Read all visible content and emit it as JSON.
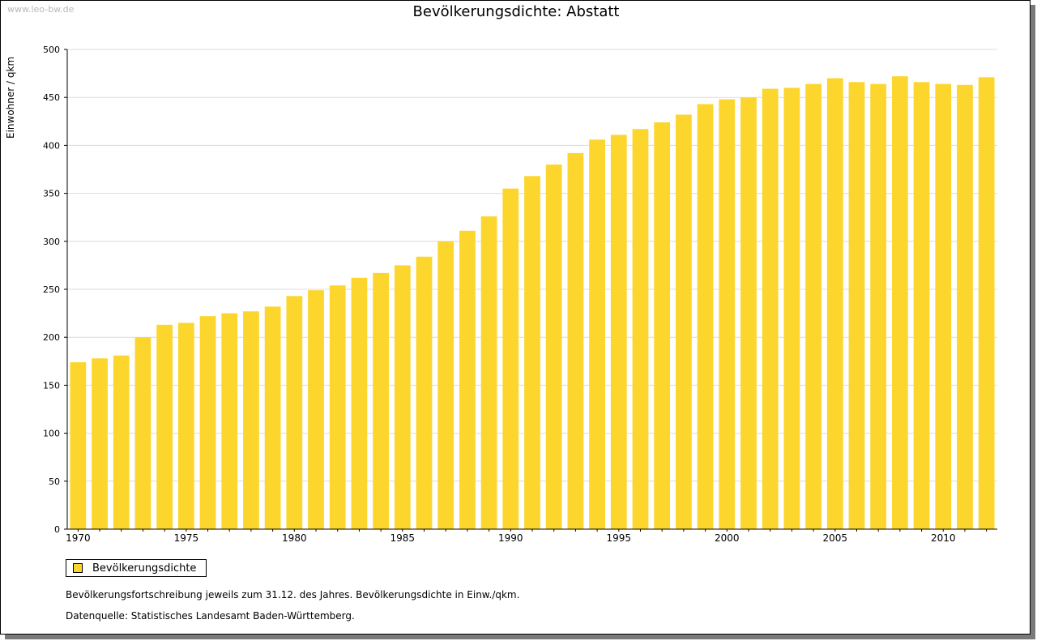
{
  "watermark": "www.leo-bw.de",
  "chart_data": {
    "type": "bar",
    "title": "Bevölkerungsdichte: Abstatt",
    "xlabel": "",
    "ylabel": "Einwohner / qkm",
    "x": [
      1970,
      1971,
      1972,
      1973,
      1974,
      1975,
      1976,
      1977,
      1978,
      1979,
      1980,
      1981,
      1982,
      1983,
      1984,
      1985,
      1986,
      1987,
      1988,
      1989,
      1990,
      1991,
      1992,
      1993,
      1994,
      1995,
      1996,
      1997,
      1998,
      1999,
      2000,
      2001,
      2002,
      2003,
      2004,
      2005,
      2006,
      2007,
      2008,
      2009,
      2010,
      2011,
      2012
    ],
    "values": [
      174,
      178,
      181,
      200,
      213,
      215,
      222,
      225,
      227,
      232,
      243,
      249,
      254,
      262,
      267,
      275,
      284,
      300,
      311,
      326,
      355,
      368,
      380,
      392,
      406,
      411,
      417,
      424,
      432,
      443,
      448,
      450,
      459,
      460,
      464,
      470,
      466,
      464,
      472,
      466,
      464,
      463,
      471
    ],
    "xticks": [
      1970,
      1975,
      1980,
      1985,
      1990,
      1995,
      2000,
      2005,
      2010
    ],
    "yticks": [
      0,
      50,
      100,
      150,
      200,
      250,
      300,
      350,
      400,
      450,
      500
    ],
    "ylim": [
      0,
      500
    ],
    "bar_color": "#fcd62d",
    "grid": true,
    "legend": {
      "entries": [
        "Bevölkerungsdichte"
      ],
      "placement": "bottom-left"
    }
  },
  "notes": {
    "line1": "Bevölkerungsfortschreibung jeweils zum 31.12. des Jahres. Bevölkerungsdichte in Einw./qkm.",
    "line2": "Datenquelle: Statistisches Landesamt Baden-Württemberg."
  }
}
